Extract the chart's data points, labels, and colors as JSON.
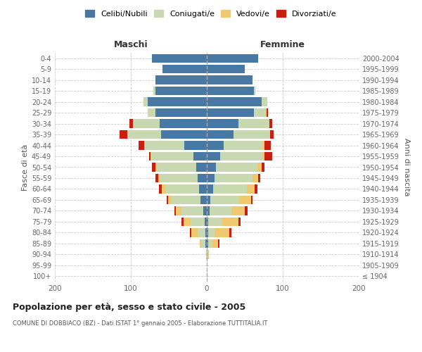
{
  "age_groups": [
    "100+",
    "95-99",
    "90-94",
    "85-89",
    "80-84",
    "75-79",
    "70-74",
    "65-69",
    "60-64",
    "55-59",
    "50-54",
    "45-49",
    "40-44",
    "35-39",
    "30-34",
    "25-29",
    "20-24",
    "15-19",
    "10-14",
    "5-9",
    "0-4"
  ],
  "birth_years": [
    "≤ 1904",
    "1905-1909",
    "1910-1914",
    "1915-1919",
    "1920-1924",
    "1925-1929",
    "1930-1934",
    "1935-1939",
    "1940-1944",
    "1945-1949",
    "1950-1954",
    "1955-1959",
    "1960-1964",
    "1965-1969",
    "1970-1974",
    "1975-1979",
    "1980-1984",
    "1985-1989",
    "1990-1994",
    "1995-1999",
    "2000-2004"
  ],
  "maschi": {
    "celibi": [
      0,
      0,
      0,
      2,
      2,
      3,
      5,
      8,
      10,
      12,
      14,
      18,
      30,
      60,
      62,
      68,
      78,
      68,
      68,
      58,
      72
    ],
    "coniugati": [
      0,
      0,
      1,
      5,
      10,
      18,
      28,
      38,
      45,
      50,
      52,
      55,
      52,
      45,
      35,
      10,
      5,
      2,
      0,
      0,
      0
    ],
    "vedovi": [
      0,
      0,
      0,
      2,
      8,
      10,
      8,
      5,
      4,
      2,
      2,
      1,
      0,
      0,
      0,
      0,
      0,
      0,
      0,
      0,
      0
    ],
    "divorziati": [
      0,
      0,
      0,
      0,
      2,
      2,
      2,
      2,
      4,
      4,
      4,
      2,
      8,
      10,
      5,
      0,
      0,
      0,
      0,
      0,
      0
    ]
  },
  "femmine": {
    "nubili": [
      0,
      0,
      0,
      2,
      2,
      2,
      4,
      5,
      8,
      10,
      12,
      18,
      22,
      35,
      42,
      62,
      72,
      62,
      60,
      50,
      68
    ],
    "coniugate": [
      0,
      0,
      1,
      5,
      8,
      18,
      28,
      38,
      45,
      50,
      55,
      55,
      52,
      48,
      40,
      15,
      8,
      2,
      0,
      0,
      0
    ],
    "vedove": [
      0,
      0,
      2,
      8,
      20,
      22,
      18,
      15,
      10,
      8,
      5,
      3,
      2,
      0,
      0,
      2,
      0,
      0,
      0,
      0,
      0
    ],
    "divorziate": [
      0,
      0,
      0,
      2,
      2,
      2,
      4,
      2,
      4,
      2,
      4,
      10,
      8,
      5,
      4,
      2,
      0,
      0,
      0,
      0,
      0
    ]
  },
  "colors": {
    "celibi": "#4878a4",
    "coniugati": "#c8d8b0",
    "vedovi": "#f0c870",
    "divorziati": "#c82010"
  },
  "xlim": 200,
  "title": "Popolazione per età, sesso e stato civile - 2005",
  "subtitle": "COMUNE DI DOBBIACO (BZ) - Dati ISTAT 1° gennaio 2005 - Elaborazione TUTTITALIA.IT",
  "ylabel_left": "Fasce di età",
  "ylabel_right": "Anni di nascita",
  "xlabel_maschi": "Maschi",
  "xlabel_femmine": "Femmine",
  "legend_labels": [
    "Celibi/Nubili",
    "Coniugati/e",
    "Vedovi/e",
    "Divorziati/e"
  ],
  "background_color": "#ffffff",
  "bar_height": 0.8
}
